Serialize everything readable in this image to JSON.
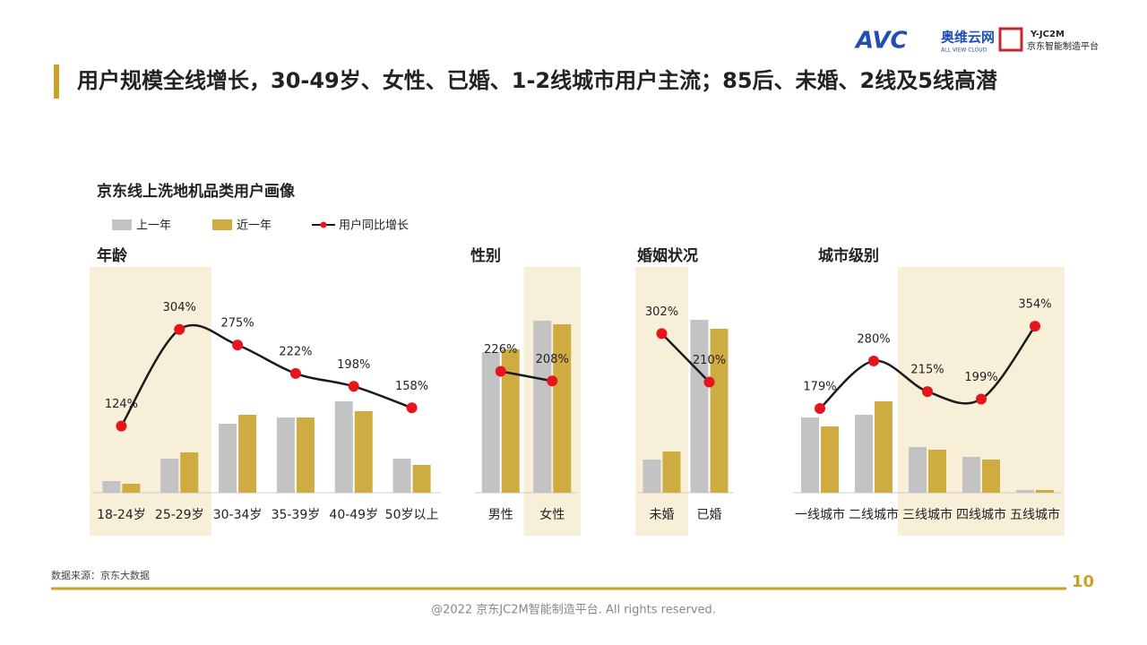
{
  "header": {
    "title": "用户规模全线增长，30-49岁、女性、已婚、1-2线城市用户主流；85后、未婚、2线及5线高潜",
    "logo_avc": "AVC",
    "logo_avc_name": "奥维云网",
    "logo_avc_sub": "ALL VIEW CLOUD",
    "logo_jc": "Y-JC2M",
    "logo_jc_name": "京东智能制造平台"
  },
  "section_title": "京东线上洗地机品类用户画像",
  "footer": {
    "source": "数据来源：京东大数据",
    "page": "10",
    "copyright": "@2022 京东JC2M智能制造平台. All rights reserved."
  },
  "chart_data": [
    {
      "type": "bar",
      "title": "年龄",
      "categories": [
        "18-24岁",
        "25-29岁",
        "30-34岁",
        "35-39岁",
        "40-49岁",
        "50岁以上"
      ],
      "highlight": [
        true,
        true,
        false,
        false,
        false,
        false
      ],
      "ylim": [
        0,
        250
      ],
      "y2lim": [
        0,
        417
      ],
      "series": [
        {
          "name": "上一年",
          "color": "#c3c3c3",
          "values": [
            13,
            38,
            77,
            84,
            102,
            38
          ]
        },
        {
          "name": "近一年",
          "color": "#cfac42",
          "values": [
            10,
            45,
            87,
            84,
            91,
            31
          ]
        },
        {
          "name": "用户同比增长",
          "type": "line",
          "axis": "y2",
          "color": "#1a1a1a",
          "marker_color": "#e8141c",
          "values": [
            124,
            304,
            275,
            222,
            198,
            158
          ],
          "value_labels": [
            "124%",
            "304%",
            "275%",
            "222%",
            "198%",
            "158%"
          ]
        }
      ]
    },
    {
      "type": "bar",
      "title": "性别",
      "categories": [
        "男性",
        "女性"
      ],
      "highlight": [
        false,
        true
      ],
      "ylim": [
        0,
        250
      ],
      "y2lim": [
        0,
        417
      ],
      "series": [
        {
          "name": "上一年",
          "color": "#c3c3c3",
          "values": [
            157,
            192
          ]
        },
        {
          "name": "近一年",
          "color": "#cfac42",
          "values": [
            160,
            188
          ]
        },
        {
          "name": "用户同比增长",
          "type": "line",
          "axis": "y2",
          "color": "#1a1a1a",
          "marker_color": "#e8141c",
          "values": [
            226,
            208
          ],
          "value_labels": [
            "226%",
            "208%"
          ]
        }
      ]
    },
    {
      "type": "bar",
      "title": "婚姻状况",
      "categories": [
        "未婚",
        "已婚"
      ],
      "highlight": [
        true,
        false
      ],
      "ylim": [
        0,
        250
      ],
      "y2lim": [
        0,
        425
      ],
      "series": [
        {
          "name": "上一年",
          "color": "#c3c3c3",
          "values": [
            37,
            193
          ]
        },
        {
          "name": "近一年",
          "color": "#cfac42",
          "values": [
            46,
            183
          ]
        },
        {
          "name": "用户同比增长",
          "type": "line",
          "axis": "y2",
          "color": "#1a1a1a",
          "marker_color": "#e8141c",
          "values": [
            302,
            210
          ],
          "value_labels": [
            "302%",
            "210%"
          ]
        }
      ]
    },
    {
      "type": "bar",
      "title": "城市级别",
      "categories": [
        "一线城市",
        "二线城市",
        "三线城市",
        "四线城市",
        "五线城市"
      ],
      "highlight": [
        false,
        false,
        true,
        true,
        true
      ],
      "ylim": [
        0,
        250
      ],
      "y2lim": [
        0,
        476
      ],
      "series": [
        {
          "name": "上一年",
          "color": "#c3c3c3",
          "values": [
            84,
            87,
            51,
            40,
            3
          ]
        },
        {
          "name": "近一年",
          "color": "#cfac42",
          "values": [
            74,
            102,
            48,
            37,
            3
          ]
        },
        {
          "name": "用户同比增长",
          "type": "line",
          "axis": "y2",
          "color": "#1a1a1a",
          "marker_color": "#e8141c",
          "values": [
            179,
            280,
            215,
            199,
            354
          ],
          "value_labels": [
            "179%",
            "280%",
            "215%",
            "199%",
            "354%"
          ]
        }
      ]
    }
  ]
}
